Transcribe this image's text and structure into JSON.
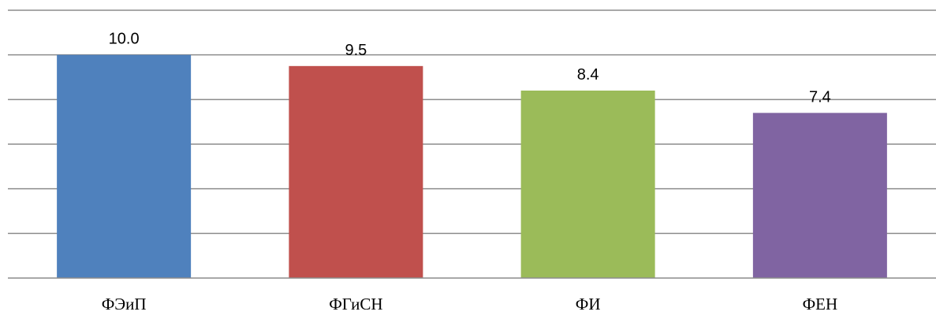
{
  "chart_data": {
    "type": "bar",
    "categories": [
      "ФЭиП",
      "ФГиСН",
      "ФИ",
      "ФЕН"
    ],
    "values": [
      10.0,
      9.5,
      8.4,
      7.4
    ],
    "value_labels": [
      "10.0",
      "9.5",
      "8.4",
      "7.4"
    ],
    "colors": [
      "#4f81bd",
      "#c0504d",
      "#9bbb59",
      "#8064a2"
    ],
    "ylim": [
      0,
      12
    ],
    "y_gridline_step": 2,
    "grid": true,
    "legend": "none",
    "title": "",
    "xlabel": "",
    "ylabel": ""
  }
}
